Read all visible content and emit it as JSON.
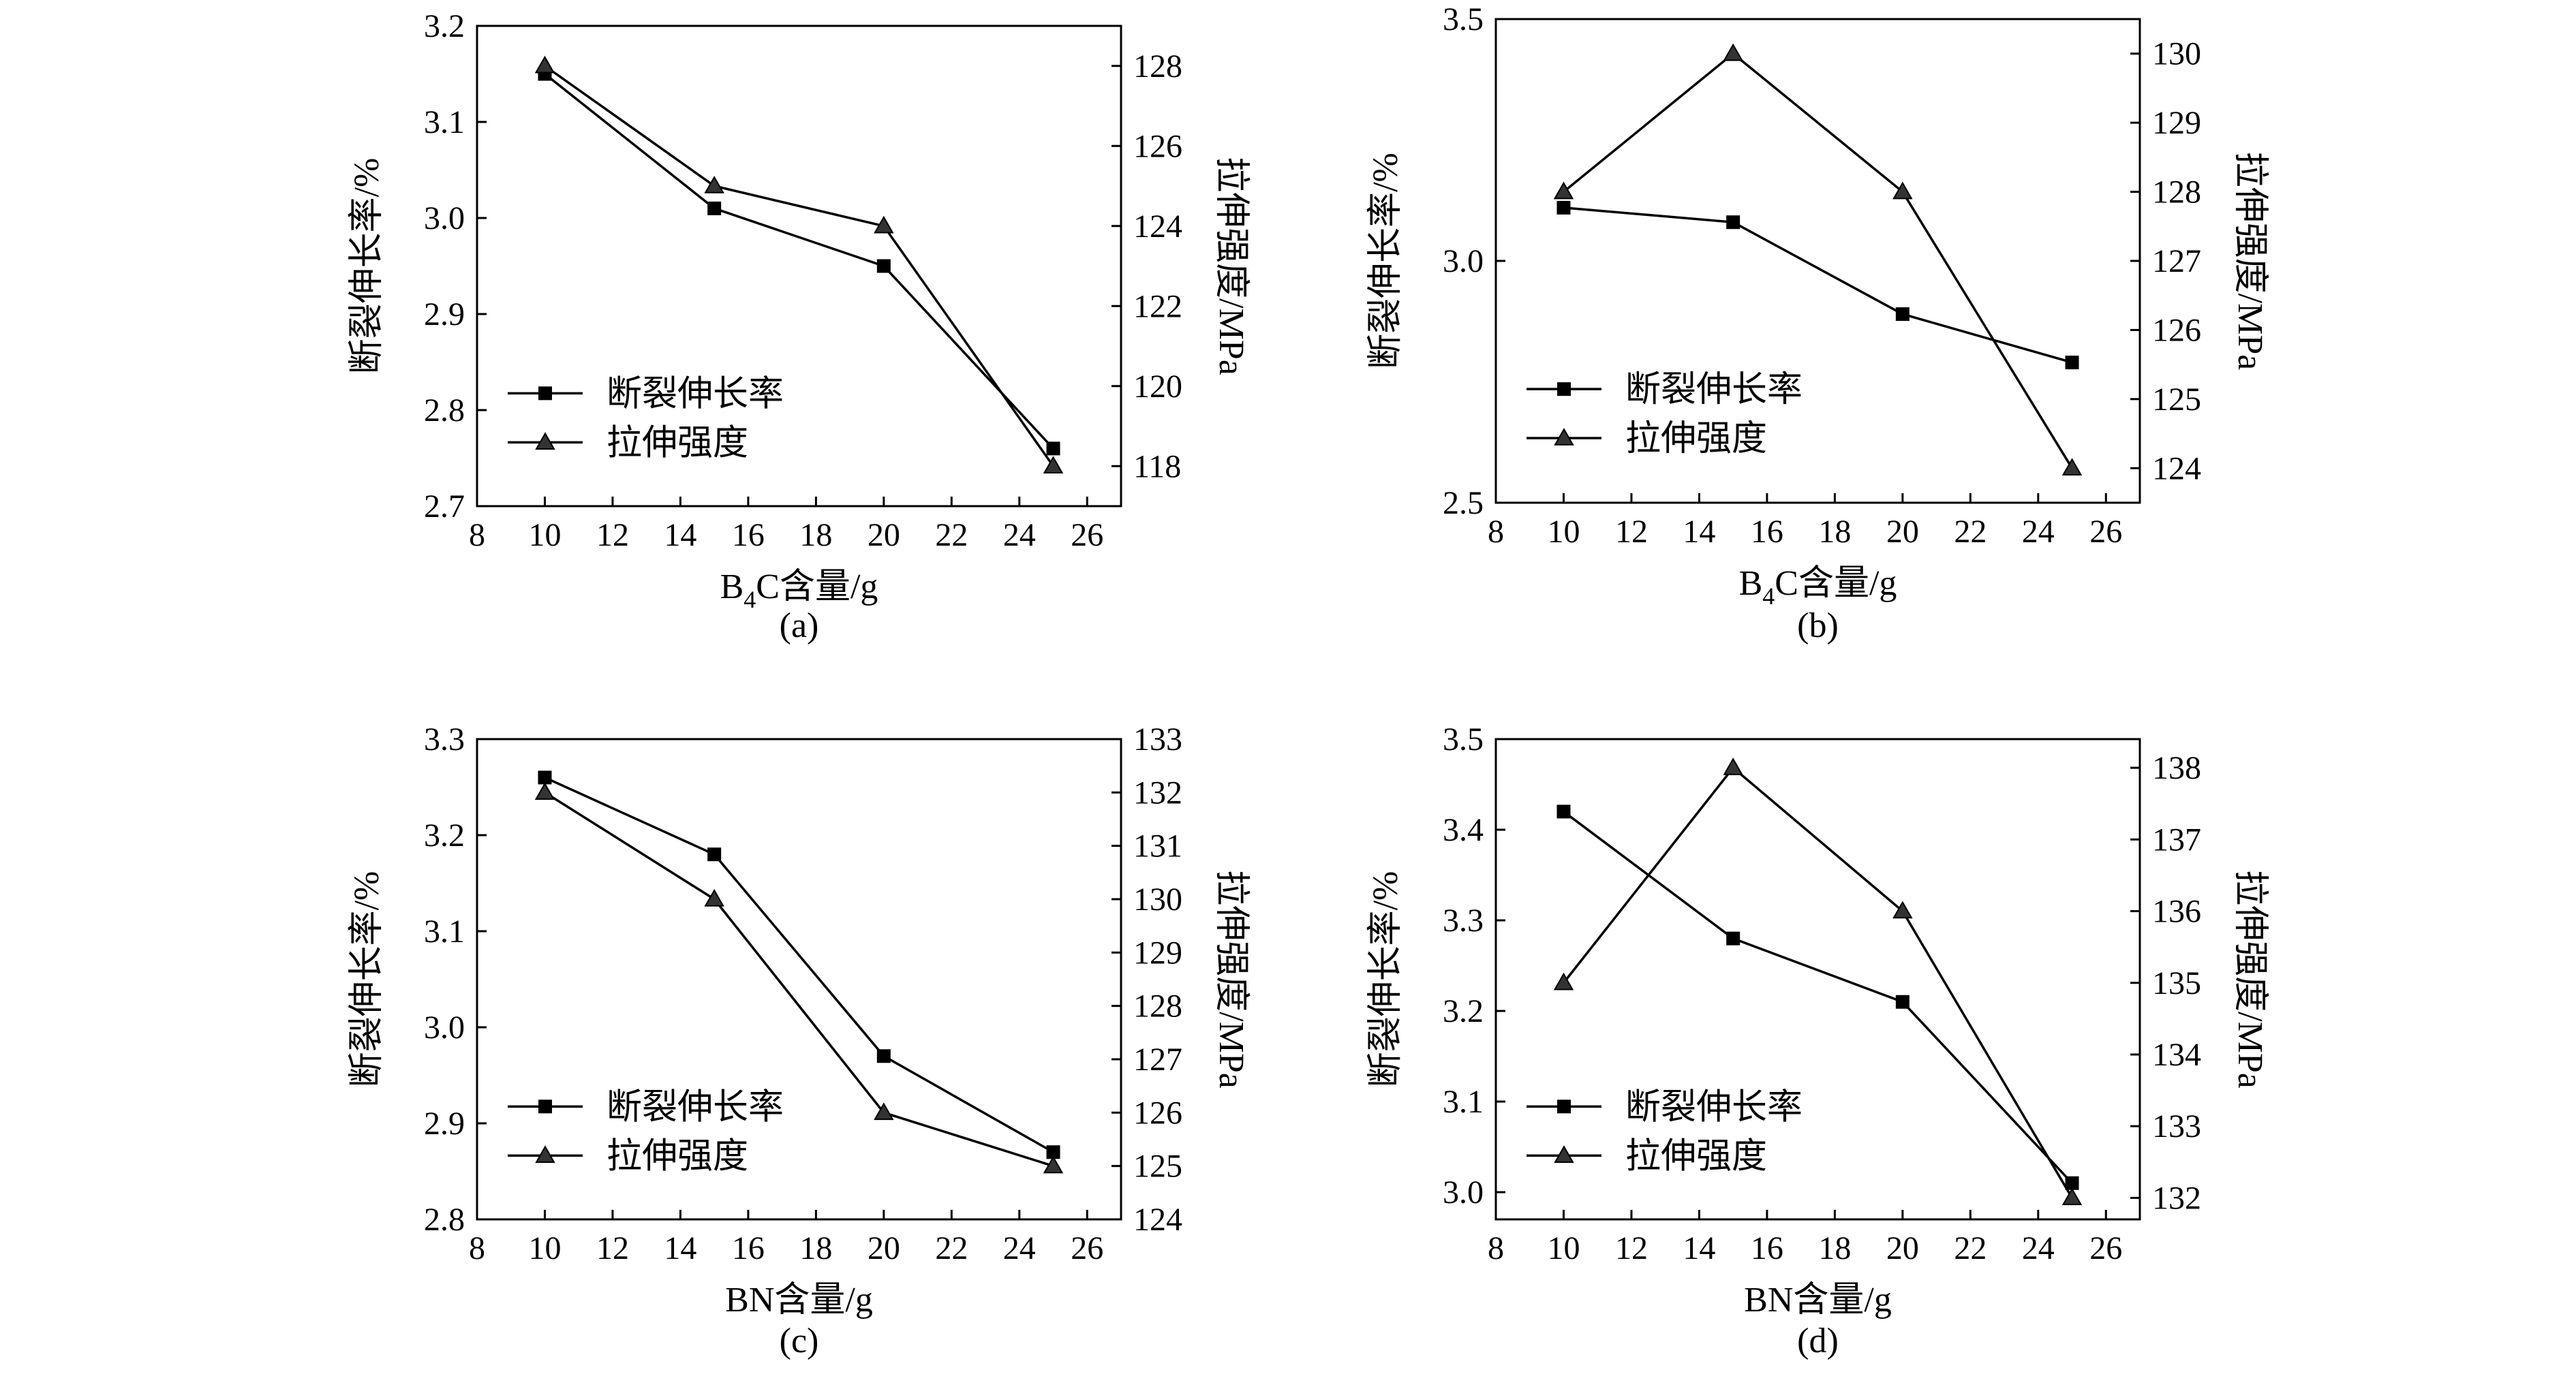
{
  "chart_data": [
    {
      "id": "a",
      "type": "line",
      "caption": "(a)",
      "xlabel_main": "B",
      "xlabel_sub": "4",
      "xlabel_rest": "C含量/g",
      "ylabel_left": "断裂伸长率/%",
      "ylabel_right": "拉伸强度/MPa",
      "xlim": [
        8,
        27
      ],
      "xticks": [
        "8",
        "10",
        "12",
        "14",
        "16",
        "18",
        "20",
        "22",
        "24",
        "26"
      ],
      "ylim_left": [
        2.7,
        3.2
      ],
      "yticks_left": [
        "2.7",
        "2.8",
        "2.9",
        "3.0",
        "3.1",
        "3.2"
      ],
      "ylim_right": [
        117,
        129
      ],
      "yticks_right": [
        "118",
        "120",
        "122",
        "124",
        "126",
        "128"
      ],
      "series": [
        {
          "name": "断裂伸长率",
          "marker": "square",
          "axis": "left",
          "x": [
            10,
            15,
            20,
            25
          ],
          "values": [
            3.15,
            3.01,
            2.95,
            2.76
          ]
        },
        {
          "name": "拉伸强度",
          "marker": "triangle",
          "axis": "right",
          "x": [
            10,
            15,
            20,
            25
          ],
          "values": [
            128.0,
            125.0,
            124.0,
            118.0
          ]
        }
      ]
    },
    {
      "id": "b",
      "type": "line",
      "caption": "(b)",
      "xlabel_main": "B",
      "xlabel_sub": "4",
      "xlabel_rest": "C含量/g",
      "ylabel_left": "断裂伸长率/%",
      "ylabel_right": "拉伸强度/MPa",
      "xlim": [
        8,
        27
      ],
      "xticks": [
        "8",
        "10",
        "12",
        "14",
        "16",
        "18",
        "20",
        "22",
        "24",
        "26"
      ],
      "ylim_left": [
        2.5,
        3.5
      ],
      "yticks_left": [
        "2.5",
        "3.0",
        "3.5"
      ],
      "ylim_right": [
        123.5,
        130.5
      ],
      "yticks_right": [
        "124",
        "125",
        "126",
        "127",
        "128",
        "129",
        "130"
      ],
      "series": [
        {
          "name": "断裂伸长率",
          "marker": "square",
          "axis": "left",
          "x": [
            10,
            15,
            20,
            25
          ],
          "values": [
            3.11,
            3.08,
            2.89,
            2.79
          ]
        },
        {
          "name": "拉伸强度",
          "marker": "triangle",
          "axis": "right",
          "x": [
            10,
            15,
            20,
            25
          ],
          "values": [
            128.0,
            130.0,
            128.0,
            124.0
          ]
        }
      ]
    },
    {
      "id": "c",
      "type": "line",
      "caption": "(c)",
      "xlabel_main": "BN含量/g",
      "xlabel_sub": "",
      "xlabel_rest": "",
      "ylabel_left": "断裂伸长率/%",
      "ylabel_right": "拉伸强度/MPa",
      "xlim": [
        8,
        27
      ],
      "xticks": [
        "8",
        "10",
        "12",
        "14",
        "16",
        "18",
        "20",
        "22",
        "24",
        "26"
      ],
      "ylim_left": [
        2.8,
        3.3
      ],
      "yticks_left": [
        "2.8",
        "2.9",
        "3.0",
        "3.1",
        "3.2",
        "3.3"
      ],
      "ylim_right": [
        124,
        133
      ],
      "yticks_right": [
        "124",
        "125",
        "126",
        "127",
        "128",
        "129",
        "130",
        "131",
        "132",
        "133"
      ],
      "series": [
        {
          "name": "断裂伸长率",
          "marker": "square",
          "axis": "left",
          "x": [
            10,
            15,
            20,
            25
          ],
          "values": [
            3.26,
            3.18,
            2.97,
            2.87
          ]
        },
        {
          "name": "拉伸强度",
          "marker": "triangle",
          "axis": "right",
          "x": [
            10,
            15,
            20,
            25
          ],
          "values": [
            132.0,
            130.0,
            126.0,
            125.0
          ]
        }
      ]
    },
    {
      "id": "d",
      "type": "line",
      "caption": "(d)",
      "xlabel_main": "BN含量/g",
      "xlabel_sub": "",
      "xlabel_rest": "",
      "ylabel_left": "断裂伸长率/%",
      "ylabel_right": "拉伸强度/MPa",
      "xlim": [
        8,
        27
      ],
      "xticks": [
        "8",
        "10",
        "12",
        "14",
        "16",
        "18",
        "20",
        "22",
        "24",
        "26"
      ],
      "ylim_left": [
        2.97,
        3.5
      ],
      "yticks_left": [
        "3.0",
        "3.1",
        "3.2",
        "3.3",
        "3.4",
        "3.5"
      ],
      "ylim_right": [
        131.7,
        138.4
      ],
      "yticks_right": [
        "132",
        "133",
        "134",
        "135",
        "136",
        "137",
        "138"
      ],
      "series": [
        {
          "name": "断裂伸长率",
          "marker": "square",
          "axis": "left",
          "x": [
            10,
            15,
            20,
            25
          ],
          "values": [
            3.42,
            3.28,
            3.21,
            3.01
          ]
        },
        {
          "name": "拉伸强度",
          "marker": "triangle",
          "axis": "right",
          "x": [
            10,
            15,
            20,
            25
          ],
          "values": [
            135.0,
            138.0,
            136.0,
            132.0
          ]
        }
      ]
    }
  ]
}
